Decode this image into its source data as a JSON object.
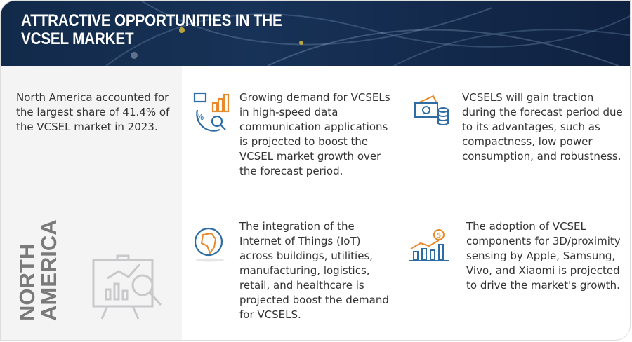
{
  "header": {
    "title_line1": "ATTRACTIVE OPPORTUNITIES IN THE",
    "title_line2": "VCSEL MARKET"
  },
  "left": {
    "summary": "North America accounted for the largest share of 41.4% of the VCSEL market in 2023.",
    "region_line1": "NORTH",
    "region_line2": "AMERICA",
    "icon": "presentation-analytics-icon"
  },
  "cards": [
    {
      "icon": "data-analytics-icon",
      "text": "Growing demand for VCSELs in high-speed data communication applications is projected to boost the VCSEL market growth over the forecast period."
    },
    {
      "icon": "money-coins-icon",
      "text": "VCSELS will gain traction during the forecast period due to its advantages, such as compactness, low power consumption, and robustness."
    },
    {
      "icon": "globe-icon",
      "text": "The integration of the Internet of Things (IoT) across buildings, utilities, manufacturing, logistics, retail, and healthcare is projected boost the demand for VCSELS."
    },
    {
      "icon": "growth-chart-dollar-icon",
      "text": "The adoption of VCSEL components for 3D/proximity sensing by Apple, Samsung, Vivo, and Xiaomi is projected to drive the market's growth."
    }
  ],
  "colors": {
    "header_bg": "#15305a",
    "icon_blue": "#2e6da4",
    "icon_orange": "#e8892b",
    "left_bg": "#f4f4f4"
  }
}
